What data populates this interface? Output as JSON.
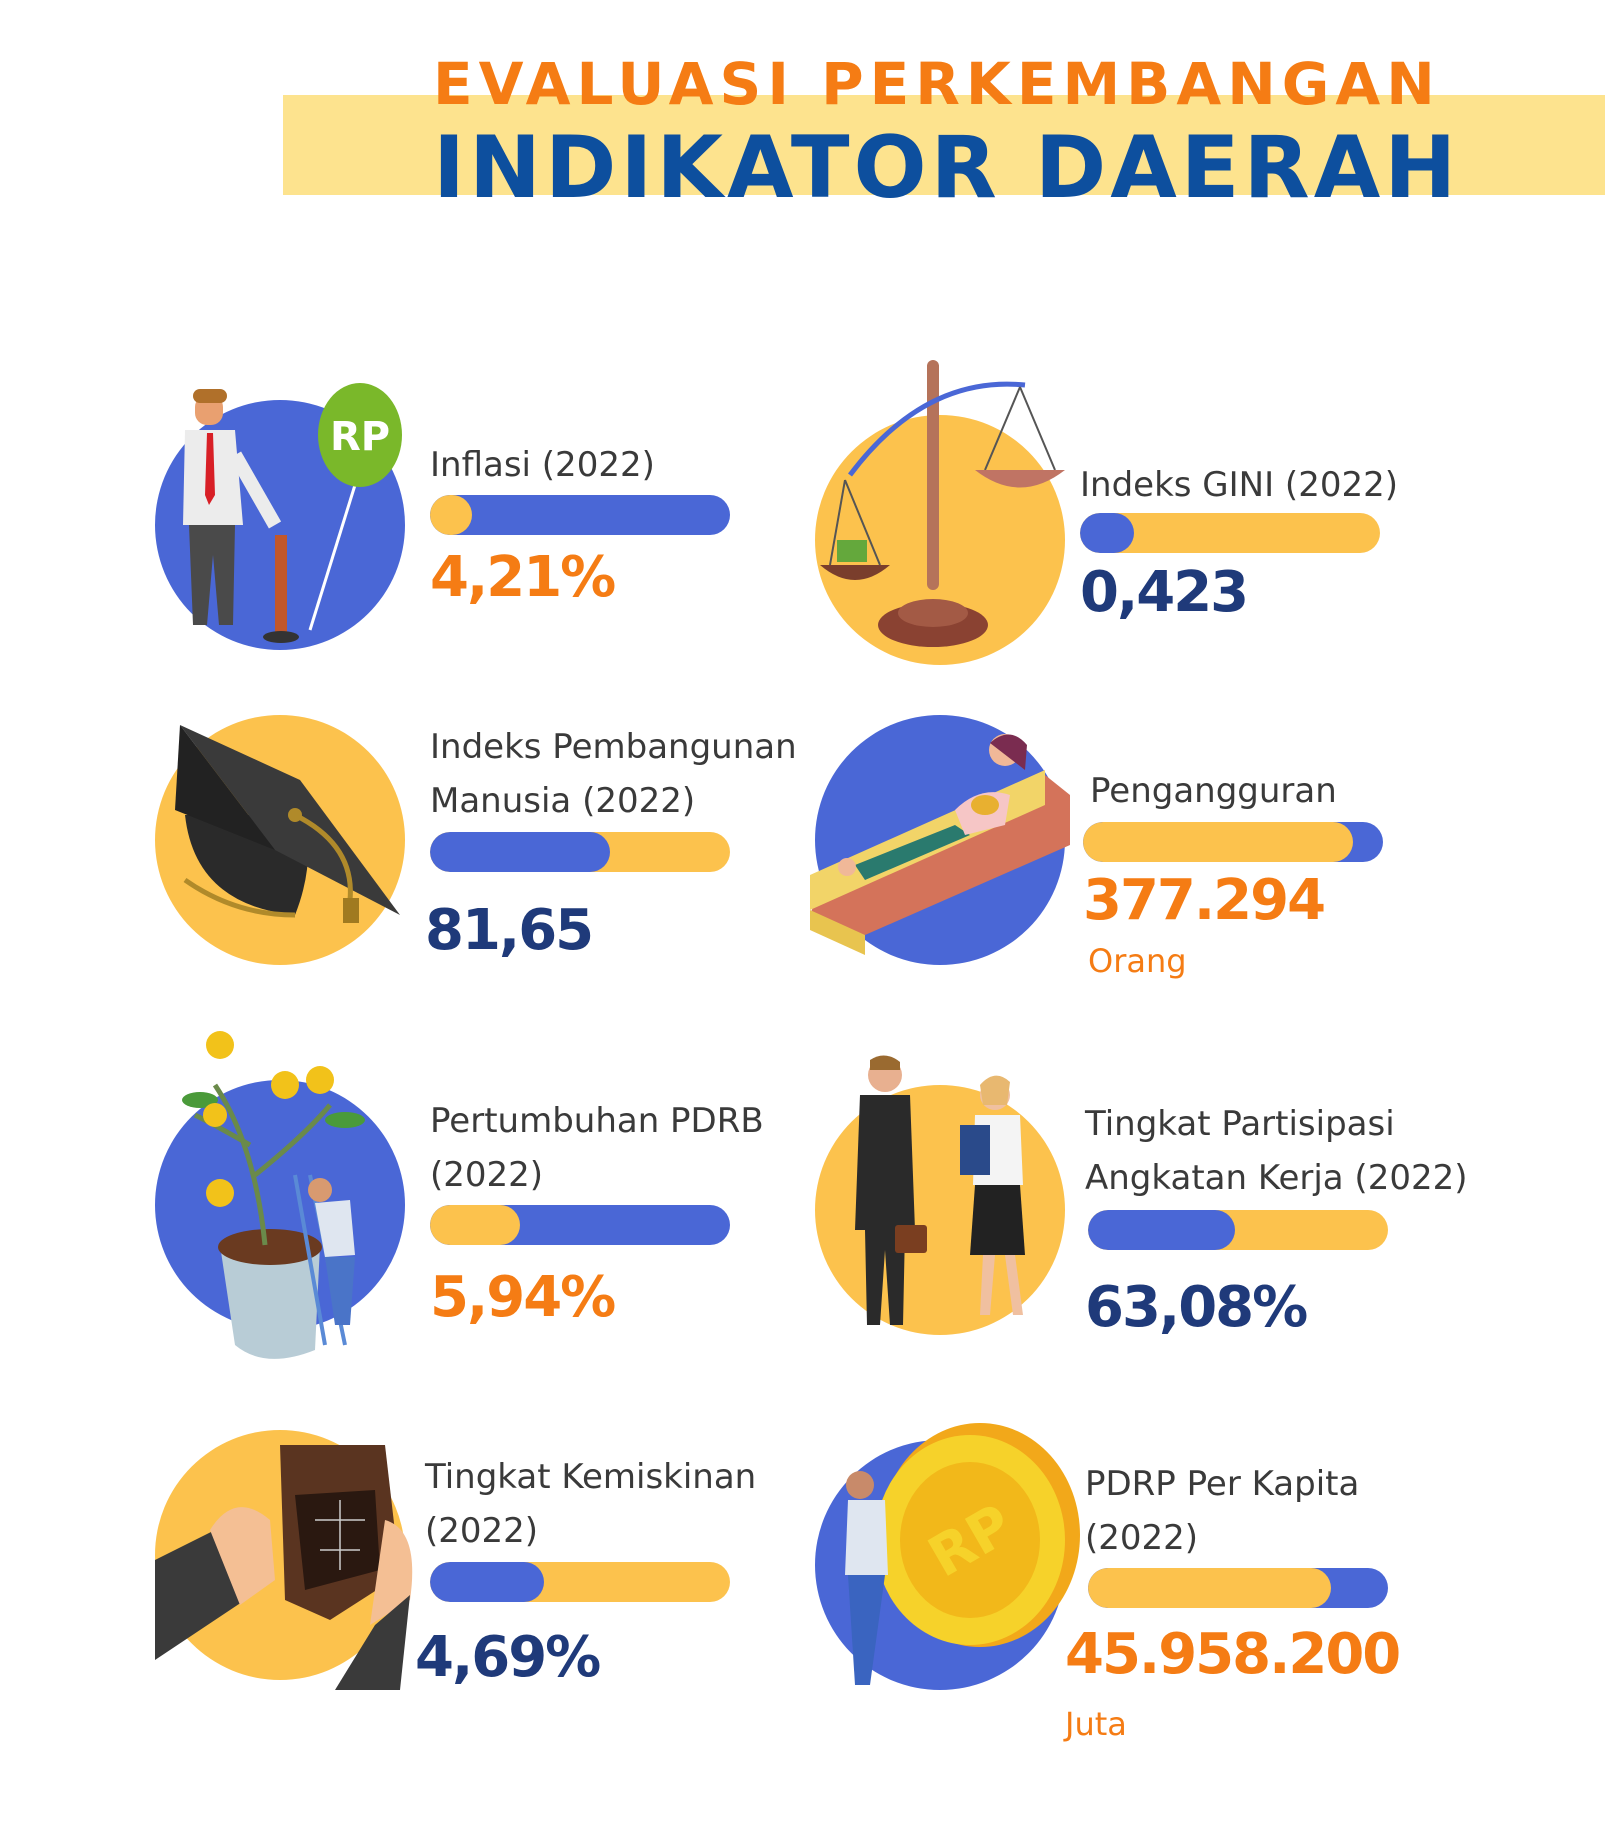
{
  "header": {
    "title_line1": "EVALUASI PERKEMBANGAN",
    "title_line2": "INDIKATOR DAERAH"
  },
  "colors": {
    "blue": "#4a67d6",
    "yellow": "#fcc24d",
    "orange": "#f57c14",
    "navy": "#1f3a7a",
    "band": "#fde38e"
  },
  "indicators": [
    {
      "id": "inflasi",
      "label_lines": [
        "Inflasi (2022)"
      ],
      "value": "4,21%",
      "unit": "",
      "bar_fill_percent": 14,
      "bar_track_color": "#4a67d6",
      "bar_fill_color": "#fcc24d",
      "value_color": "#f57c14",
      "circle_color": "#4a67d6",
      "icon": "balloon-pump-icon"
    },
    {
      "id": "gini",
      "label_lines": [
        "Indeks GINI (2022)"
      ],
      "value": "0,423",
      "unit": "",
      "bar_fill_percent": 18,
      "bar_track_color": "#fcc24d",
      "bar_fill_color": "#4a67d6",
      "value_color": "#1f3a7a",
      "circle_color": "#fcc24d",
      "icon": "scale-icon"
    },
    {
      "id": "ipm",
      "label_lines": [
        "Indeks Pembangunan",
        "Manusia (2022)"
      ],
      "value": "81,65",
      "unit": "",
      "bar_fill_percent": 60,
      "bar_track_color": "#fcc24d",
      "bar_fill_color": "#4a67d6",
      "value_color": "#1f3a7a",
      "circle_color": "#fcc24d",
      "icon": "graduation-cap-icon"
    },
    {
      "id": "pengangguran",
      "label_lines": [
        "Pengangguran"
      ],
      "value": "377.294",
      "unit": "Orang",
      "bar_fill_percent": 90,
      "bar_track_color": "#4a67d6",
      "bar_fill_color": "#fcc24d",
      "value_color": "#f57c14",
      "circle_color": "#4a67d6",
      "icon": "sofa-person-icon"
    },
    {
      "id": "pdrb",
      "label_lines": [
        "Pertumbuhan PDRB",
        "(2022)"
      ],
      "value": "5,94%",
      "unit": "",
      "bar_fill_percent": 30,
      "bar_track_color": "#4a67d6",
      "bar_fill_color": "#fcc24d",
      "value_color": "#f57c14",
      "circle_color": "#4a67d6",
      "icon": "money-tree-icon"
    },
    {
      "id": "tpak",
      "label_lines": [
        "Tingkat Partisipasi",
        "Angkatan Kerja (2022)"
      ],
      "value": "63,08%",
      "unit": "",
      "bar_fill_percent": 49,
      "bar_track_color": "#fcc24d",
      "bar_fill_color": "#4a67d6",
      "value_color": "#1f3a7a",
      "circle_color": "#fcc24d",
      "icon": "workers-icon"
    },
    {
      "id": "kemiskinan",
      "label_lines": [
        "Tingkat Kemiskinan",
        "(2022)"
      ],
      "value": "4,69%",
      "unit": "",
      "bar_fill_percent": 38,
      "bar_track_color": "#fcc24d",
      "bar_fill_color": "#4a67d6",
      "value_color": "#1f3a7a",
      "circle_color": "#fcc24d",
      "icon": "empty-wallet-icon"
    },
    {
      "id": "pdrp",
      "label_lines": [
        "PDRP Per Kapita",
        "(2022)"
      ],
      "value": "45.958.200",
      "unit": "Juta",
      "bar_fill_percent": 81,
      "bar_track_color": "#4a67d6",
      "bar_fill_color": "#fcc24d",
      "value_color": "#f57c14",
      "circle_color": "#4a67d6",
      "icon": "rp-coin-icon"
    }
  ]
}
